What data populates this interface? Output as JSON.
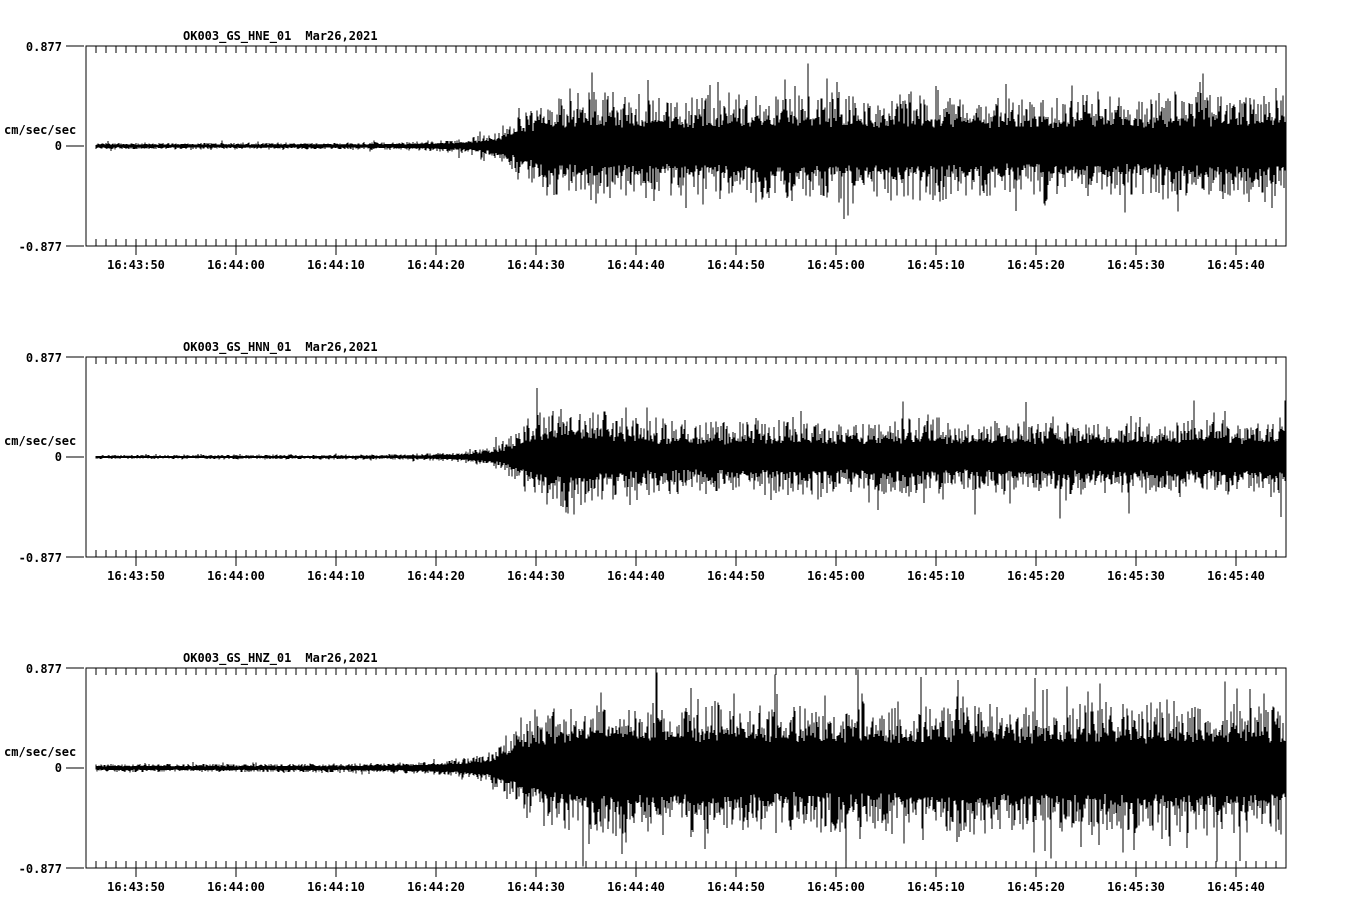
{
  "colors": {
    "background": "#ffffff",
    "trace": "#000000",
    "text": "#000000"
  },
  "chart_data": [
    {
      "type": "line",
      "subtype": "seismogram",
      "title": "OK003_GS_HNE_01",
      "date_label": "Mar26,2021",
      "station": "OK003",
      "network": "GS",
      "channel": "HNE",
      "location": "01",
      "ylabel": "cm/sec/sec",
      "ylim": [
        -0.877,
        0.877
      ],
      "ytick_values": [
        0.877,
        0,
        -0.877
      ],
      "ytick_labels": [
        "0.877",
        "0",
        "-0.877"
      ],
      "x_start_time": "16:43:45",
      "x_duration_sec": 120,
      "xtick_labels": [
        "16:43:50",
        "16:44:00",
        "16:44:10",
        "16:44:20",
        "16:44:30",
        "16:44:40",
        "16:44:50",
        "16:45:00",
        "16:45:10",
        "16:45:20",
        "16:45:30",
        "16:45:40"
      ],
      "xtick_first_offset_sec": 5,
      "xtick_interval_sec": 10,
      "minor_tick_interval_sec": 1,
      "grid": false,
      "legend": false,
      "approx_peak_amp": 0.7,
      "envelope": {
        "description": "approximate amplitude envelope of trace vs seconds after 16:43:45 (cm/sec/sec)",
        "t_sec": [
          1,
          15,
          25,
          30,
          34,
          37,
          40,
          42,
          44,
          47,
          52,
          58,
          64,
          70,
          76,
          82,
          88,
          94,
          100,
          106,
          112,
          120
        ],
        "amp": [
          0.026,
          0.026,
          0.028,
          0.032,
          0.04,
          0.055,
          0.09,
          0.16,
          0.3,
          0.42,
          0.44,
          0.38,
          0.42,
          0.45,
          0.4,
          0.44,
          0.41,
          0.38,
          0.43,
          0.4,
          0.44,
          0.42
        ]
      }
    },
    {
      "type": "line",
      "subtype": "seismogram",
      "title": "OK003_GS_HNN_01",
      "date_label": "Mar26,2021",
      "station": "OK003",
      "network": "GS",
      "channel": "HNN",
      "location": "01",
      "ylabel": "cm/sec/sec",
      "ylim": [
        -0.877,
        0.877
      ],
      "ytick_values": [
        0.877,
        0,
        -0.877
      ],
      "ytick_labels": [
        "0.877",
        "0",
        "-0.877"
      ],
      "x_start_time": "16:43:45",
      "x_duration_sec": 120,
      "xtick_labels": [
        "16:43:50",
        "16:44:00",
        "16:44:10",
        "16:44:20",
        "16:44:30",
        "16:44:40",
        "16:44:50",
        "16:45:00",
        "16:45:10",
        "16:45:20",
        "16:45:30",
        "16:45:40"
      ],
      "xtick_first_offset_sec": 5,
      "xtick_interval_sec": 10,
      "minor_tick_interval_sec": 1,
      "grid": false,
      "legend": false,
      "approx_peak_amp": 0.62,
      "envelope": {
        "description": "approximate amplitude envelope of trace vs seconds after 16:43:45 (cm/sec/sec)",
        "t_sec": [
          1,
          15,
          25,
          30,
          34,
          37,
          40,
          42,
          44,
          47,
          52,
          58,
          64,
          70,
          76,
          82,
          88,
          94,
          100,
          106,
          112,
          120
        ],
        "amp": [
          0.018,
          0.018,
          0.02,
          0.022,
          0.028,
          0.04,
          0.07,
          0.14,
          0.3,
          0.44,
          0.36,
          0.3,
          0.28,
          0.31,
          0.29,
          0.32,
          0.29,
          0.31,
          0.3,
          0.32,
          0.31,
          0.33
        ]
      }
    },
    {
      "type": "line",
      "subtype": "seismogram",
      "title": "OK003_GS_HNZ_01",
      "date_label": "Mar26,2021",
      "station": "OK003",
      "network": "GS",
      "channel": "HNZ",
      "location": "01",
      "ylabel": "cm/sec/sec",
      "ylim": [
        -0.877,
        0.877
      ],
      "ytick_values": [
        0.877,
        0,
        -0.877
      ],
      "ytick_labels": [
        "0.877",
        "0",
        "-0.877"
      ],
      "x_start_time": "16:43:45",
      "x_duration_sec": 120,
      "xtick_labels": [
        "16:43:50",
        "16:44:00",
        "16:44:10",
        "16:44:20",
        "16:44:30",
        "16:44:40",
        "16:44:50",
        "16:45:00",
        "16:45:10",
        "16:45:20",
        "16:45:30",
        "16:45:40"
      ],
      "xtick_first_offset_sec": 5,
      "xtick_interval_sec": 10,
      "minor_tick_interval_sec": 1,
      "grid": false,
      "legend": false,
      "approx_peak_amp": 0.86,
      "envelope": {
        "description": "approximate amplitude envelope of trace vs seconds after 16:43:45 (cm/sec/sec)",
        "t_sec": [
          1,
          15,
          25,
          30,
          34,
          37,
          40,
          42,
          44,
          47,
          52,
          58,
          64,
          70,
          76,
          82,
          88,
          94,
          100,
          106,
          112,
          120
        ],
        "amp": [
          0.03,
          0.03,
          0.032,
          0.036,
          0.045,
          0.065,
          0.11,
          0.2,
          0.34,
          0.46,
          0.52,
          0.48,
          0.5,
          0.46,
          0.49,
          0.47,
          0.5,
          0.46,
          0.48,
          0.47,
          0.49,
          0.48
        ]
      }
    }
  ]
}
